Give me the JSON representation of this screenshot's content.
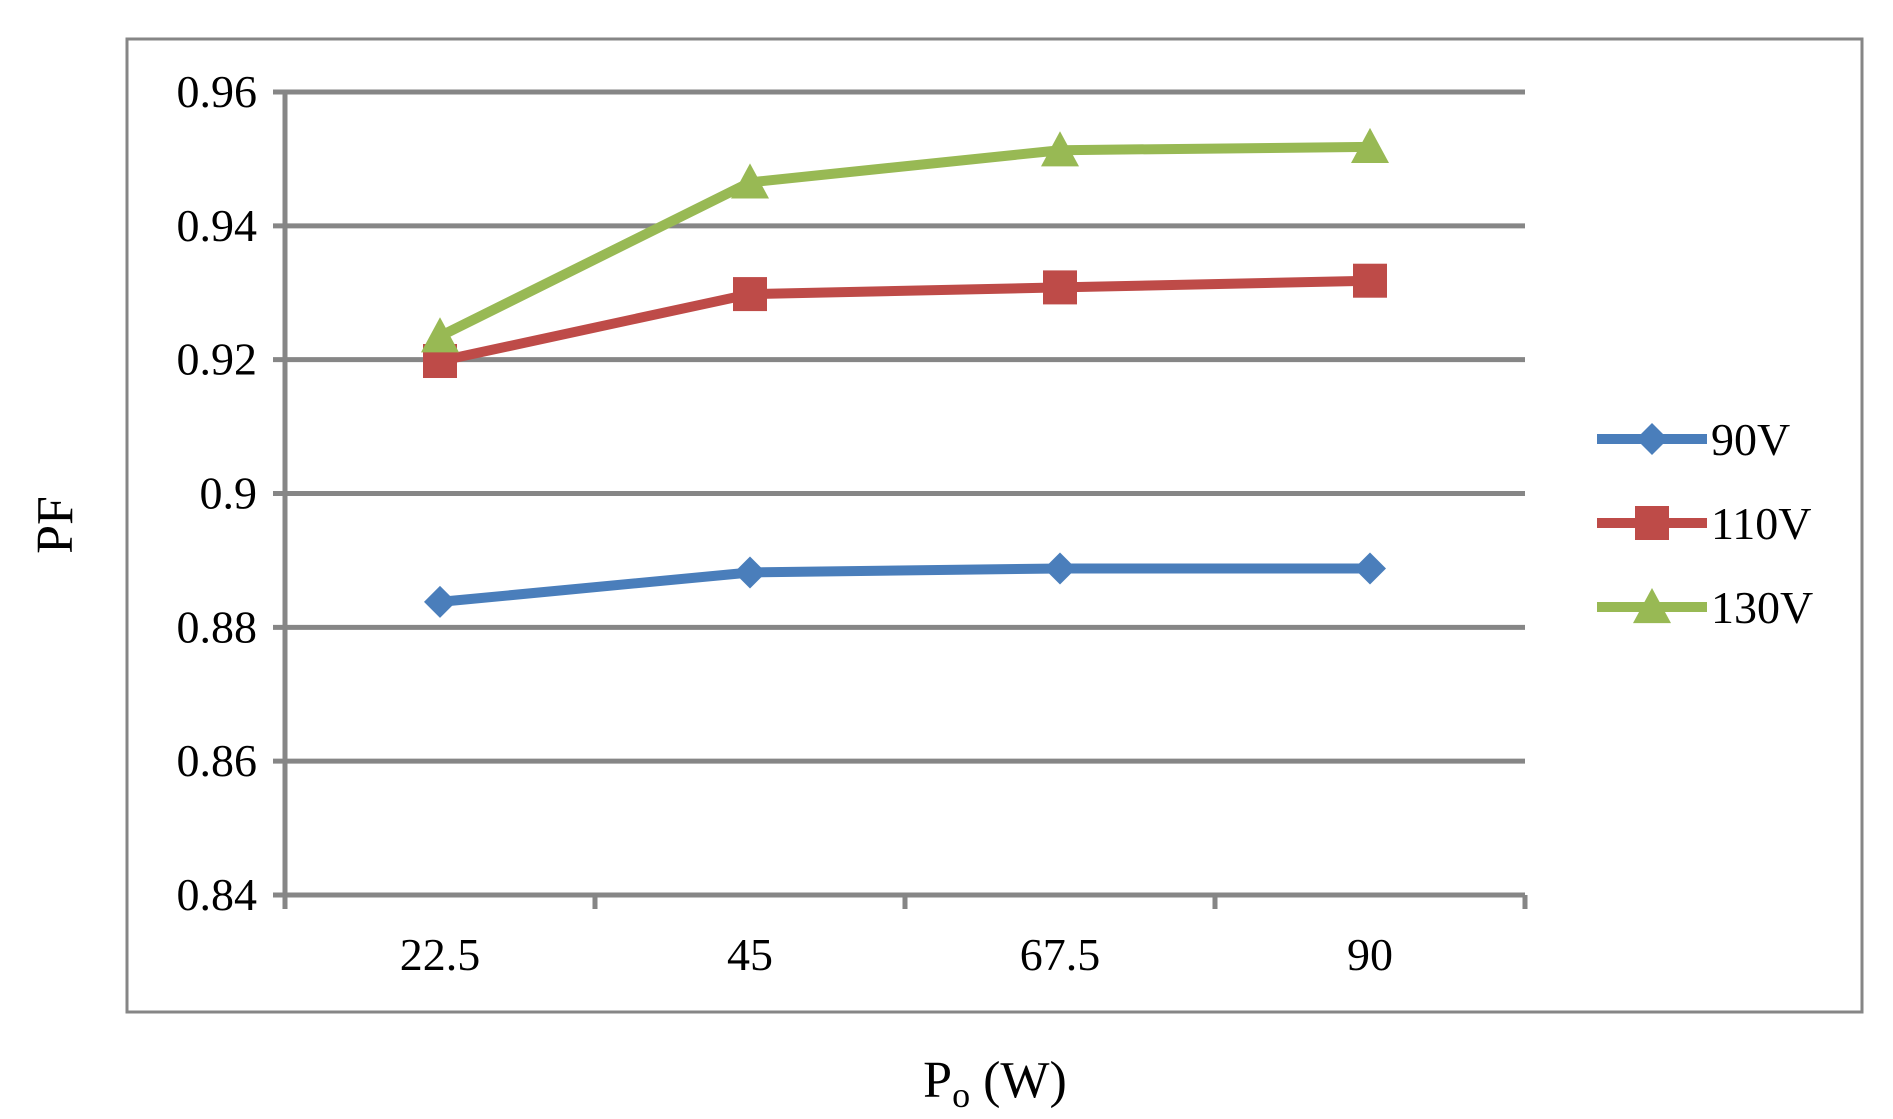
{
  "chart_data": {
    "type": "line",
    "title": "",
    "xlabel": "P",
    "xlabel_sub": "o",
    "xlabel_unit": " (W)",
    "ylabel": "PF",
    "categories": [
      "22.5",
      "45",
      "67.5",
      "90"
    ],
    "ylim": [
      0.84,
      0.96
    ],
    "yticks": [
      "0.84",
      "0.86",
      "0.88",
      "0.9",
      "0.92",
      "0.94",
      "0.96"
    ],
    "grid": true,
    "legend_position": "right",
    "series": [
      {
        "name": "90V",
        "color": "#4a7ebb",
        "marker": "diamond",
        "values": [
          0.8838,
          0.8882,
          0.8888,
          0.8888
        ]
      },
      {
        "name": "110V",
        "color": "#be4b48",
        "marker": "square",
        "values": [
          0.9198,
          0.9298,
          0.9308,
          0.9318
        ]
      },
      {
        "name": "130V",
        "color": "#98b954",
        "marker": "triangle",
        "values": [
          0.9235,
          0.9465,
          0.9513,
          0.9518
        ]
      }
    ],
    "colors": {
      "grid": "#868686",
      "axis": "#868686",
      "frame": "#868686"
    }
  }
}
